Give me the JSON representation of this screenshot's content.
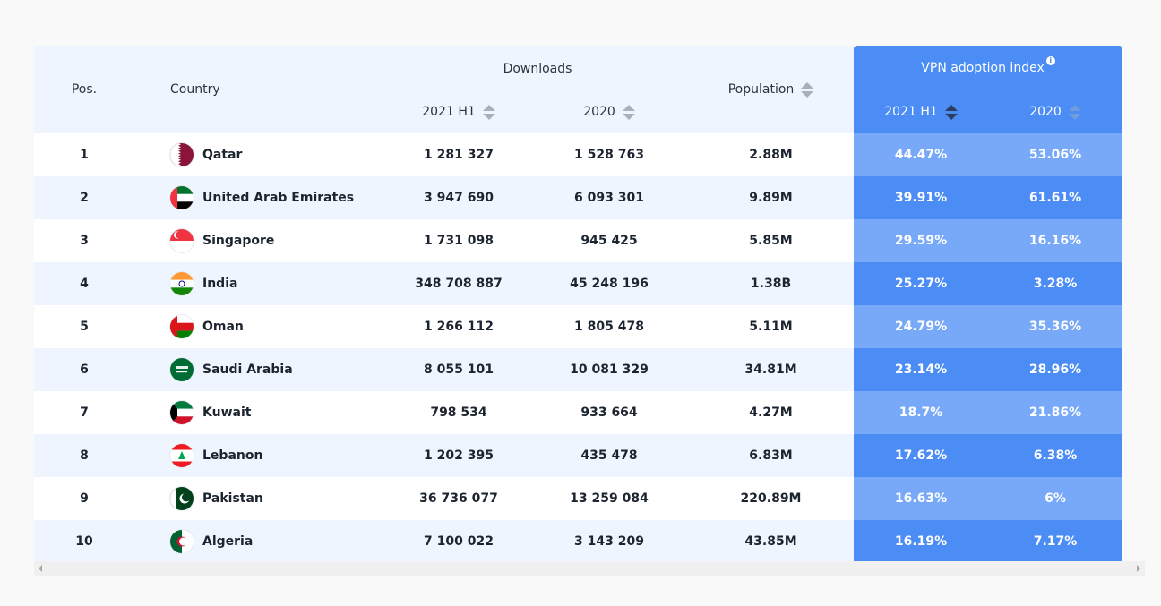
{
  "table": {
    "headers": {
      "pos": "Pos.",
      "country": "Country",
      "downloads": "Downloads",
      "downloads_2021h1": "2021 H1",
      "downloads_2020": "2020",
      "population": "Population",
      "vpn_index": "VPN adoption index",
      "vpn_info_icon": "info-icon",
      "vpn_2021h1": "2021 H1",
      "vpn_2020": "2020"
    },
    "colors": {
      "header_bg": "#eef5fe",
      "vpn_header_bg": "#4b8cf5",
      "vpn_cell_light": "#77a9f8",
      "vpn_cell_dark": "#4b8cf5"
    },
    "rows": [
      {
        "pos": "1",
        "country": "Qatar",
        "flag": "flag-qatar-icon",
        "dl_2021h1": "1 281 327",
        "dl_2020": "1 528 763",
        "population": "2.88M",
        "vpn_2021h1": "44.47%",
        "vpn_2020": "53.06%"
      },
      {
        "pos": "2",
        "country": "United Arab Emirates",
        "flag": "flag-uae-icon",
        "dl_2021h1": "3 947 690",
        "dl_2020": "6 093 301",
        "population": "9.89M",
        "vpn_2021h1": "39.91%",
        "vpn_2020": "61.61%"
      },
      {
        "pos": "3",
        "country": "Singapore",
        "flag": "flag-singapore-icon",
        "dl_2021h1": "1 731 098",
        "dl_2020": "945 425",
        "population": "5.85M",
        "vpn_2021h1": "29.59%",
        "vpn_2020": "16.16%"
      },
      {
        "pos": "4",
        "country": "India",
        "flag": "flag-india-icon",
        "dl_2021h1": "348 708 887",
        "dl_2020": "45 248 196",
        "population": "1.38B",
        "vpn_2021h1": "25.27%",
        "vpn_2020": "3.28%"
      },
      {
        "pos": "5",
        "country": "Oman",
        "flag": "flag-oman-icon",
        "dl_2021h1": "1 266 112",
        "dl_2020": "1 805 478",
        "population": "5.11M",
        "vpn_2021h1": "24.79%",
        "vpn_2020": "35.36%"
      },
      {
        "pos": "6",
        "country": "Saudi Arabia",
        "flag": "flag-saudi-arabia-icon",
        "dl_2021h1": "8 055 101",
        "dl_2020": "10 081 329",
        "population": "34.81M",
        "vpn_2021h1": "23.14%",
        "vpn_2020": "28.96%"
      },
      {
        "pos": "7",
        "country": "Kuwait",
        "flag": "flag-kuwait-icon",
        "dl_2021h1": "798 534",
        "dl_2020": "933 664",
        "population": "4.27M",
        "vpn_2021h1": "18.7%",
        "vpn_2020": "21.86%"
      },
      {
        "pos": "8",
        "country": "Lebanon",
        "flag": "flag-lebanon-icon",
        "dl_2021h1": "1 202 395",
        "dl_2020": "435 478",
        "population": "6.83M",
        "vpn_2021h1": "17.62%",
        "vpn_2020": "6.38%"
      },
      {
        "pos": "9",
        "country": "Pakistan",
        "flag": "flag-pakistan-icon",
        "dl_2021h1": "36 736 077",
        "dl_2020": "13 259 084",
        "population": "220.89M",
        "vpn_2021h1": "16.63%",
        "vpn_2020": "6%"
      },
      {
        "pos": "10",
        "country": "Algeria",
        "flag": "flag-algeria-icon",
        "dl_2021h1": "7 100 022",
        "dl_2020": "3 143 209",
        "population": "43.85M",
        "vpn_2021h1": "16.19%",
        "vpn_2020": "7.17%"
      }
    ]
  }
}
